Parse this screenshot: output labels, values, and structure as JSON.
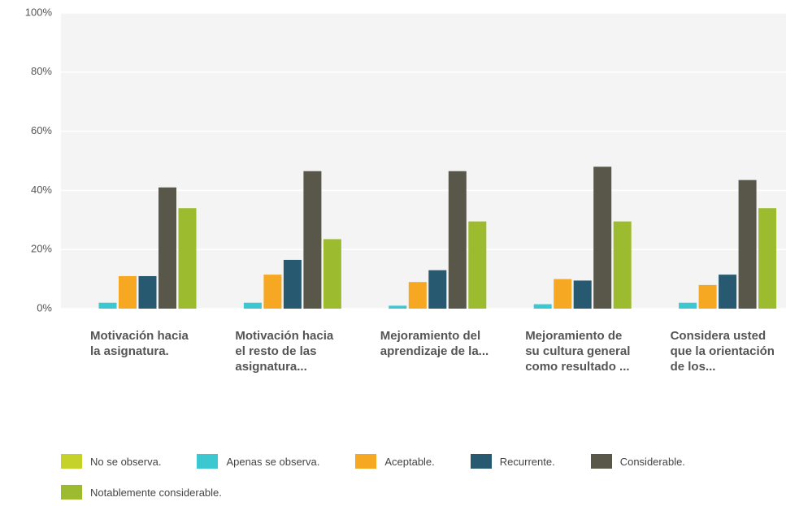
{
  "chart_data": {
    "type": "bar",
    "categories": [
      "Motivación hacia la asignatura.",
      "Motivación hacia el resto de las asignatura...",
      "Mejoramiento del aprendizaje de la...",
      "Mejoramiento de su cultura general como resultado ...",
      "Considera usted que la orientación de los..."
    ],
    "series": [
      {
        "name": "No se observa.",
        "color": "#c5d22a",
        "values": [
          0,
          0,
          0,
          0,
          0
        ]
      },
      {
        "name": "Apenas se observa.",
        "color": "#3cc8d0",
        "values": [
          2,
          2,
          1,
          1.5,
          2
        ]
      },
      {
        "name": "Aceptable.",
        "color": "#f7a823",
        "values": [
          11,
          11.5,
          9,
          10,
          8
        ]
      },
      {
        "name": "Recurrente.",
        "color": "#275a70",
        "values": [
          11,
          16.5,
          13,
          9.5,
          11.5
        ]
      },
      {
        "name": "Considerable.",
        "color": "#58574a",
        "values": [
          41,
          46.5,
          46.5,
          48,
          43.5
        ]
      },
      {
        "name": "Notablemente considerable.",
        "color": "#9dbb2e",
        "values": [
          34,
          23.5,
          29.5,
          29.5,
          34
        ]
      }
    ],
    "ylim": [
      0,
      100
    ],
    "yticks": [
      {
        "value": 0,
        "label": "0%"
      },
      {
        "value": 20,
        "label": "20%"
      },
      {
        "value": 40,
        "label": "40%"
      },
      {
        "value": 60,
        "label": "60%"
      },
      {
        "value": 80,
        "label": "80%"
      },
      {
        "value": 100,
        "label": "100%"
      }
    ],
    "grid": true
  }
}
